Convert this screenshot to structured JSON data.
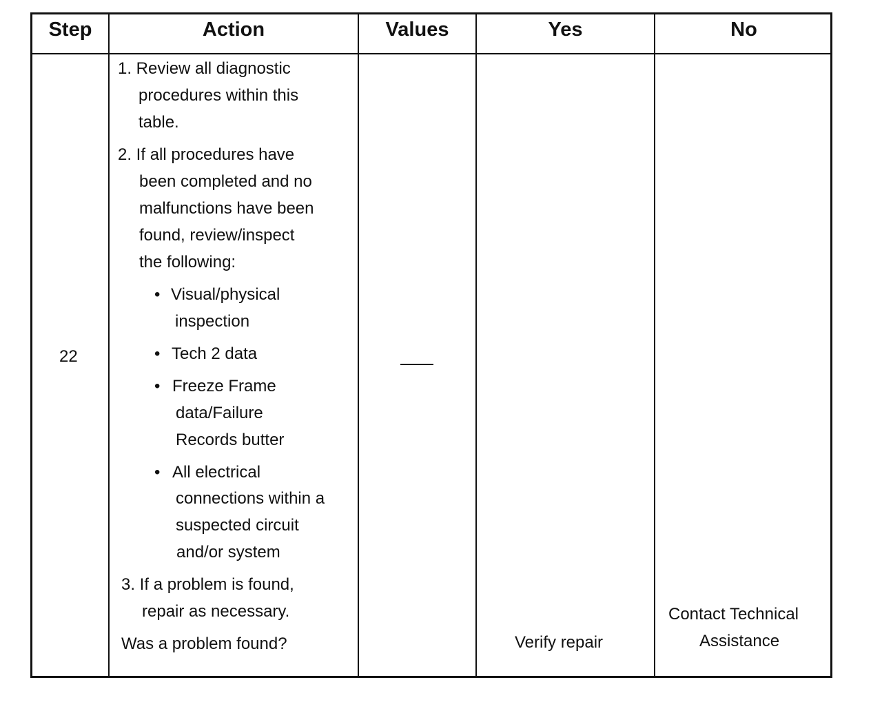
{
  "headers": {
    "step": "Step",
    "action": "Action",
    "values": "Values",
    "yes": "Yes",
    "no": "No"
  },
  "row": {
    "step": "22",
    "action": {
      "item1": [
        "1. Review all diagnostic",
        "procedures within this",
        "table."
      ],
      "item2": [
        "2. If all procedures have",
        "been completed and no",
        "malfunctions have been",
        "found, review/inspect",
        "the following:"
      ],
      "bullets": [
        [
          "Visual/physical",
          "inspection"
        ],
        [
          "Tech 2 data"
        ],
        [
          "Freeze Frame",
          "data/Failure",
          "Records butter"
        ],
        [
          "All electrical",
          "connections within a",
          "suspected circuit",
          "and/or system"
        ]
      ],
      "item3": [
        "3. If a problem is found,",
        "repair as necessary."
      ],
      "question": "Was a problem found?"
    },
    "values": "—",
    "yes": "Verify repair",
    "no": [
      "Contact Technical",
      "Assistance"
    ]
  }
}
